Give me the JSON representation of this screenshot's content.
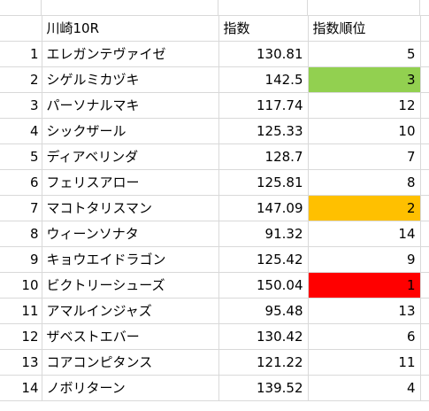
{
  "header": {
    "race": "川崎10R",
    "score": "指数",
    "rank": "指数順位"
  },
  "rows": [
    {
      "num": "1",
      "name": "エレガンテヴァイゼ",
      "score": "130.81",
      "rank": "5",
      "highlight": ""
    },
    {
      "num": "2",
      "name": "シゲルミカヅキ",
      "score": "142.5",
      "rank": "3",
      "highlight": "#92d050"
    },
    {
      "num": "3",
      "name": "パーソナルマキ",
      "score": "117.74",
      "rank": "12",
      "highlight": ""
    },
    {
      "num": "4",
      "name": "シックザール",
      "score": "125.33",
      "rank": "10",
      "highlight": ""
    },
    {
      "num": "5",
      "name": "ディアベリンダ",
      "score": "128.7",
      "rank": "7",
      "highlight": ""
    },
    {
      "num": "6",
      "name": "フェリスアロー",
      "score": "125.81",
      "rank": "8",
      "highlight": ""
    },
    {
      "num": "7",
      "name": "マコトタリスマン",
      "score": "147.09",
      "rank": "2",
      "highlight": "#ffc000"
    },
    {
      "num": "8",
      "name": "ウィーンソナタ",
      "score": "91.32",
      "rank": "14",
      "highlight": ""
    },
    {
      "num": "9",
      "name": "キョウエイドラゴン",
      "score": "125.42",
      "rank": "9",
      "highlight": ""
    },
    {
      "num": "10",
      "name": "ビクトリーシューズ",
      "score": "150.04",
      "rank": "1",
      "highlight": "#ff0000"
    },
    {
      "num": "11",
      "name": "アマルインジャズ",
      "score": "95.48",
      "rank": "13",
      "highlight": ""
    },
    {
      "num": "12",
      "name": "ザベストエバー",
      "score": "130.42",
      "rank": "6",
      "highlight": ""
    },
    {
      "num": "13",
      "name": "コアコンピタンス",
      "score": "121.22",
      "rank": "11",
      "highlight": ""
    },
    {
      "num": "14",
      "name": "ノボリターン",
      "score": "139.52",
      "rank": "4",
      "highlight": ""
    }
  ]
}
